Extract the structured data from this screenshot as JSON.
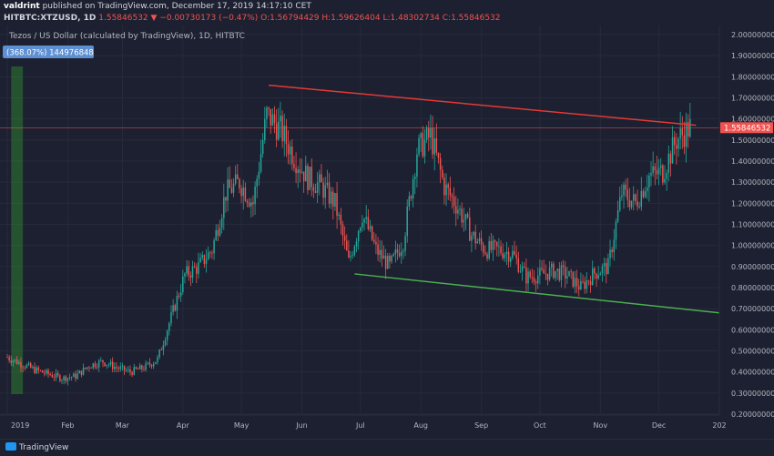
{
  "header": {
    "author": "valdrint",
    "published_text": "published on TradingView.com, December 17, 2019 14:17:10 CET",
    "symbol": "HITBTC:XTZUSD, 1D",
    "last": "1.55846532",
    "change": "▼ −0.00730173 (−0.47%)",
    "ohlc_o": "O:1.56794429",
    "ohlc_h": "H:1.59626404",
    "ohlc_l": "L:1.48302734",
    "ohlc_c": "C:1.55846532"
  },
  "chart_title": "Tezos / US Dollar (calculated by TradingView), 1D, HITBTC",
  "measure_label": "(368.07%) 144976848",
  "footer": {
    "brand": "TradingView"
  },
  "colors": {
    "background": "#1c2030",
    "up": "#26a69a",
    "down": "#ef5350",
    "resistance": "#e53935",
    "support": "#4caf50",
    "highlight": "#2e7d32"
  },
  "chart_data": {
    "type": "candlestick",
    "title": "Tezos / US Dollar (calculated by TradingView), 1D, HITBTC",
    "ylim": [
      0.2,
      2.0
    ],
    "y_ticks": [
      0.2,
      0.3,
      0.4,
      0.5,
      0.6,
      0.7,
      0.8,
      0.9,
      1.0,
      1.1,
      1.2,
      1.3,
      1.4,
      1.5,
      1.6,
      1.7,
      1.8,
      1.9,
      2.0
    ],
    "y_tick_labels": [
      "0.20000000",
      "0.30000000",
      "0.40000000",
      "0.50000000",
      "0.60000000",
      "0.70000000",
      "0.80000000",
      "0.90000000",
      "1.00000000",
      "1.10000000",
      "1.20000000",
      "1.30000000",
      "1.40000000",
      "1.50000000",
      "1.60000000",
      "1.70000000",
      "1.80000000",
      "1.90000000",
      "2.00000000"
    ],
    "x_range": [
      "2019-01-01",
      "2020-01-01"
    ],
    "x_ticks": [
      "2019-01-01",
      "2019-02-01",
      "2019-03-01",
      "2019-04-01",
      "2019-05-01",
      "2019-06-01",
      "2019-07-01",
      "2019-08-01",
      "2019-09-01",
      "2019-10-01",
      "2019-11-01",
      "2019-12-01",
      "2020-01-01"
    ],
    "x_tick_labels": [
      "2019",
      "Feb",
      "Mar",
      "Apr",
      "May",
      "Jun",
      "Jul",
      "Aug",
      "Sep",
      "Oct",
      "Nov",
      "Dec",
      "202"
    ],
    "last_price": 1.55846532,
    "last_price_label": "1.55846532",
    "weekly_closes": [
      {
        "date": "2019-01-01",
        "close": 0.47
      },
      {
        "date": "2019-01-08",
        "close": 0.44
      },
      {
        "date": "2019-01-15",
        "close": 0.41
      },
      {
        "date": "2019-01-22",
        "close": 0.39
      },
      {
        "date": "2019-01-29",
        "close": 0.37
      },
      {
        "date": "2019-02-05",
        "close": 0.38
      },
      {
        "date": "2019-02-12",
        "close": 0.43
      },
      {
        "date": "2019-02-19",
        "close": 0.45
      },
      {
        "date": "2019-02-26",
        "close": 0.42
      },
      {
        "date": "2019-03-05",
        "close": 0.4
      },
      {
        "date": "2019-03-12",
        "close": 0.42
      },
      {
        "date": "2019-03-19",
        "close": 0.46
      },
      {
        "date": "2019-03-26",
        "close": 0.66
      },
      {
        "date": "2019-04-02",
        "close": 0.86
      },
      {
        "date": "2019-04-09",
        "close": 0.9
      },
      {
        "date": "2019-04-16",
        "close": 0.98
      },
      {
        "date": "2019-04-23",
        "close": 1.25
      },
      {
        "date": "2019-04-30",
        "close": 1.3
      },
      {
        "date": "2019-05-07",
        "close": 1.2
      },
      {
        "date": "2019-05-14",
        "close": 1.62
      },
      {
        "date": "2019-05-21",
        "close": 1.55
      },
      {
        "date": "2019-05-28",
        "close": 1.42
      },
      {
        "date": "2019-06-04",
        "close": 1.32
      },
      {
        "date": "2019-06-11",
        "close": 1.28
      },
      {
        "date": "2019-06-18",
        "close": 1.2
      },
      {
        "date": "2019-06-25",
        "close": 0.92
      },
      {
        "date": "2019-07-02",
        "close": 1.15
      },
      {
        "date": "2019-07-09",
        "close": 0.98
      },
      {
        "date": "2019-07-16",
        "close": 0.9
      },
      {
        "date": "2019-07-23",
        "close": 1.02
      },
      {
        "date": "2019-07-30",
        "close": 1.45
      },
      {
        "date": "2019-08-06",
        "close": 1.52
      },
      {
        "date": "2019-08-13",
        "close": 1.28
      },
      {
        "date": "2019-08-20",
        "close": 1.18
      },
      {
        "date": "2019-08-27",
        "close": 1.05
      },
      {
        "date": "2019-09-03",
        "close": 0.98
      },
      {
        "date": "2019-09-10",
        "close": 0.98
      },
      {
        "date": "2019-09-17",
        "close": 0.96
      },
      {
        "date": "2019-09-24",
        "close": 0.85
      },
      {
        "date": "2019-10-01",
        "close": 0.86
      },
      {
        "date": "2019-10-08",
        "close": 0.88
      },
      {
        "date": "2019-10-15",
        "close": 0.86
      },
      {
        "date": "2019-10-22",
        "close": 0.8
      },
      {
        "date": "2019-10-29",
        "close": 0.87
      },
      {
        "date": "2019-11-05",
        "close": 0.9
      },
      {
        "date": "2019-11-12",
        "close": 1.25
      },
      {
        "date": "2019-11-19",
        "close": 1.2
      },
      {
        "date": "2019-11-26",
        "close": 1.33
      },
      {
        "date": "2019-12-03",
        "close": 1.35
      },
      {
        "date": "2019-12-10",
        "close": 1.5
      },
      {
        "date": "2019-12-17",
        "close": 1.56
      }
    ],
    "trendlines": [
      {
        "name": "resistance",
        "color": "#e53935",
        "from": {
          "date": "2019-05-15",
          "price": 1.76
        },
        "to": {
          "date": "2019-12-20",
          "price": 1.57
        }
      },
      {
        "name": "support",
        "color": "#4caf50",
        "from": {
          "date": "2019-06-28",
          "price": 0.865
        },
        "to": {
          "date": "2020-01-01",
          "price": 0.68
        }
      }
    ],
    "highlight_range": {
      "from": "2019-01-03",
      "to": "2019-01-09"
    },
    "grid": true
  }
}
